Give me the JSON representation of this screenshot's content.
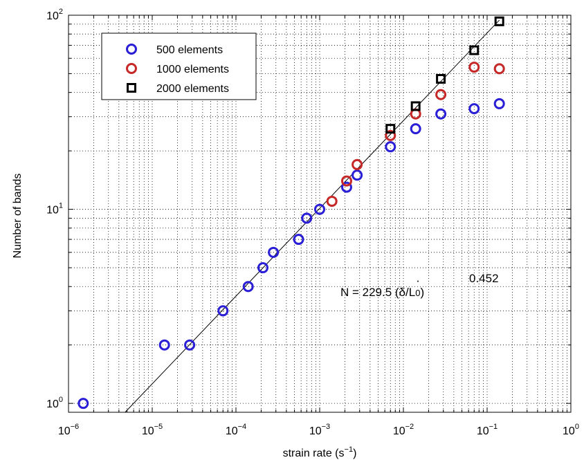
{
  "chart_data": {
    "type": "scatter",
    "xlabel": "strain rate (s",
    "xlabel_sup": "−1",
    "xlabel_end": ")",
    "ylabel": "Number of bands",
    "x_scale": "log",
    "y_scale": "log",
    "xlim": [
      1e-06,
      1
    ],
    "ylim": [
      0.9,
      100
    ],
    "x_ticks": [
      {
        "value": 1e-06,
        "base": "10",
        "exp": "−6"
      },
      {
        "value": 1e-05,
        "base": "10",
        "exp": "−5"
      },
      {
        "value": 0.0001,
        "base": "10",
        "exp": "−4"
      },
      {
        "value": 0.001,
        "base": "10",
        "exp": "−3"
      },
      {
        "value": 0.01,
        "base": "10",
        "exp": "−2"
      },
      {
        "value": 0.1,
        "base": "10",
        "exp": "−1"
      },
      {
        "value": 1,
        "base": "10",
        "exp": "0"
      }
    ],
    "y_ticks": [
      {
        "value": 1,
        "base": "10",
        "exp": "0"
      },
      {
        "value": 10,
        "base": "10",
        "exp": "1"
      },
      {
        "value": 100,
        "base": "10",
        "exp": "2"
      }
    ],
    "grid": "major and minor, dotted",
    "legend_position": "top-left",
    "series": [
      {
        "name": "500 elements",
        "marker": "circle",
        "color": "#2a1fd6",
        "x": [
          1.5e-06,
          1.4e-05,
          2.8e-05,
          7e-05,
          0.00014,
          0.00021,
          0.00028,
          0.00056,
          0.0007,
          0.001,
          0.0021,
          0.0028,
          0.007,
          0.014,
          0.028,
          0.07,
          0.14
        ],
        "y": [
          1,
          2,
          2,
          3,
          4,
          5,
          6,
          7,
          9,
          10,
          13,
          15,
          21,
          26,
          31,
          33,
          35
        ]
      },
      {
        "name": "1000 elements",
        "marker": "circle",
        "color": "#c62828",
        "x": [
          0.0014,
          0.0021,
          0.0028,
          0.007,
          0.014,
          0.028,
          0.07,
          0.14
        ],
        "y": [
          11,
          14,
          17,
          24,
          31,
          39,
          54,
          53
        ]
      },
      {
        "name": "2000 elements",
        "marker": "square",
        "color": "#000000",
        "x": [
          0.007,
          0.014,
          0.028,
          0.07,
          0.14
        ],
        "y": [
          26,
          34,
          47,
          66,
          93
        ]
      }
    ],
    "fit_line": {
      "coefficient": 229.5,
      "exponent": 0.452,
      "color": "#000000"
    },
    "annotation": {
      "prefix": "N = 229.5 (",
      "delta": "δ",
      "dot": "·",
      "slash": "/L",
      "sub": "0",
      "suffix": ")",
      "exponent": "0.452"
    }
  }
}
